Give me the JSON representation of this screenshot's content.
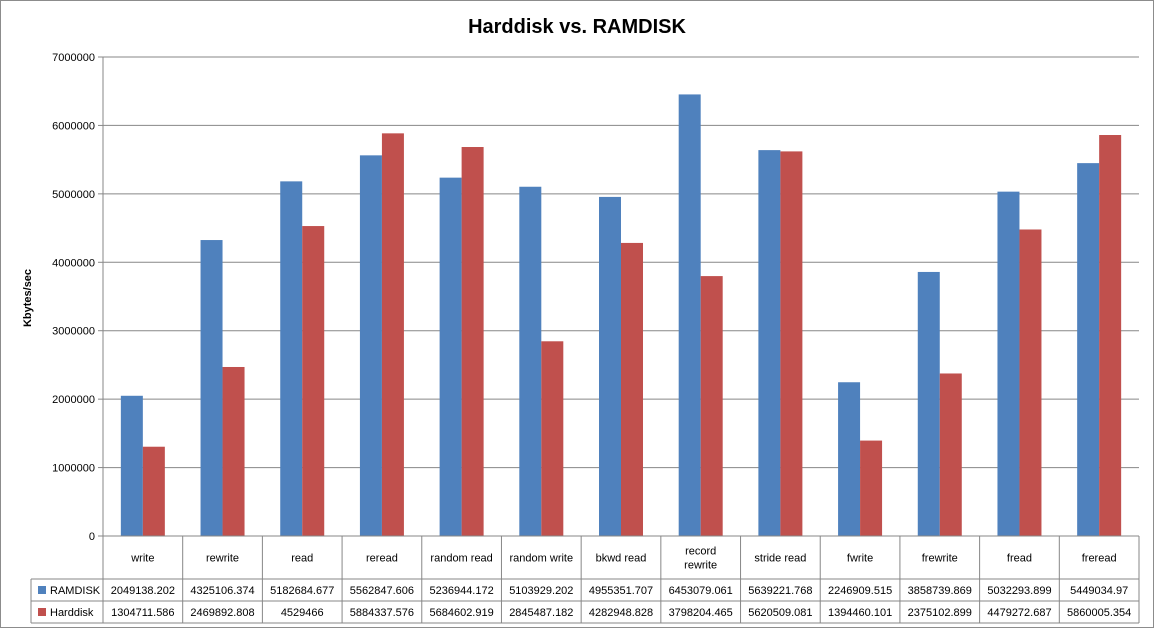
{
  "chart_data": {
    "type": "bar",
    "title": "Harddisk vs. RAMDISK",
    "xlabel": "",
    "ylabel": "Kbytes/sec",
    "ylim": [
      0,
      7000000
    ],
    "yticks": [
      "0",
      "1000000",
      "2000000",
      "3000000",
      "4000000",
      "5000000",
      "6000000",
      "7000000"
    ],
    "grid": true,
    "legend_position": "data-table",
    "categories": [
      "write",
      "rewrite",
      "read",
      "reread",
      "random read",
      "random write",
      "bkwd read",
      "record rewrite",
      "stride read",
      "fwrite",
      "frewrite",
      "fread",
      "freread"
    ],
    "series": [
      {
        "name": "RAMDISK",
        "color": "#4f81bd",
        "values": [
          2049138.202,
          4325106.374,
          5182684.677,
          5562847.606,
          5236944.172,
          5103929.202,
          4955351.707,
          6453079.061,
          5639221.768,
          2246909.515,
          3858739.869,
          5032293.899,
          5449034.97
        ],
        "labels": [
          "2049138.202",
          "4325106.374",
          "5182684.677",
          "5562847.606",
          "5236944.172",
          "5103929.202",
          "4955351.707",
          "6453079.061",
          "5639221.768",
          "2246909.515",
          "3858739.869",
          "5032293.899",
          "5449034.97"
        ]
      },
      {
        "name": "Harddisk",
        "color": "#c0504d",
        "values": [
          1304711.586,
          2469892.808,
          4529466,
          5884337.576,
          5684602.919,
          2845487.182,
          4282948.828,
          3798204.465,
          5620509.081,
          1394460.101,
          2375102.899,
          4479272.687,
          5860005.354
        ],
        "labels": [
          "1304711.586",
          "2469892.808",
          "4529466",
          "5884337.576",
          "5684602.919",
          "2845487.182",
          "4282948.828",
          "3798204.465",
          "5620509.081",
          "1394460.101",
          "2375102.899",
          "4479272.687",
          "5860005.354"
        ]
      }
    ]
  }
}
